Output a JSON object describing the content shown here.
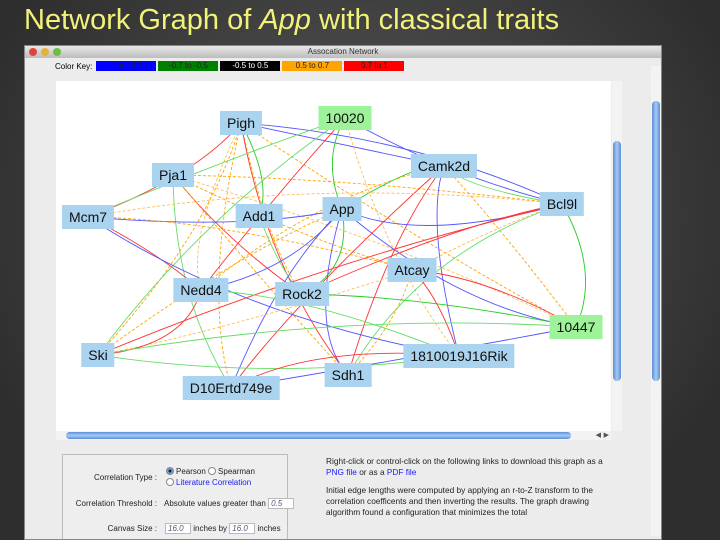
{
  "slide": {
    "title_prefix": "Network Graph of ",
    "title_italic": "App",
    "title_suffix": " with classical traits"
  },
  "window": {
    "title": "Assocation Network"
  },
  "color_key": {
    "label": "Color Key:",
    "items": [
      {
        "label": "-1 to -0.7",
        "color": "#0000ff"
      },
      {
        "label": "-0.7 to -0.5",
        "color": "#008000"
      },
      {
        "label": "-0.5 to 0.5",
        "color": "#000000"
      },
      {
        "label": "0.5 to 0.7",
        "color": "#ffa500"
      },
      {
        "label": "0.7 to 1",
        "color": "#ff0000"
      }
    ]
  },
  "nodes": [
    {
      "label": "Pigh",
      "highlight": false
    },
    {
      "label": "10020",
      "highlight": true
    },
    {
      "label": "Pja1",
      "highlight": false
    },
    {
      "label": "Camk2d",
      "highlight": false
    },
    {
      "label": "Mcm7",
      "highlight": false
    },
    {
      "label": "Add1",
      "highlight": false
    },
    {
      "label": "App",
      "highlight": false
    },
    {
      "label": "Bcl9l",
      "highlight": false
    },
    {
      "label": "Atcay",
      "highlight": false
    },
    {
      "label": "Nedd4",
      "highlight": false
    },
    {
      "label": "Rock2",
      "highlight": false
    },
    {
      "label": "10447",
      "highlight": true
    },
    {
      "label": "Ski",
      "highlight": false
    },
    {
      "label": "1810019J16Rik",
      "highlight": false
    },
    {
      "label": "Sdh1",
      "highlight": false
    },
    {
      "label": "D10Ertd749e",
      "highlight": false
    }
  ],
  "form": {
    "correlation_type_label": "Correlation Type :",
    "pearson": "Pearson",
    "spearman": "Spearman",
    "literature": "Literature Correlation",
    "selected": "Pearson",
    "threshold_label": "Correlation Threshold :",
    "threshold_text": "Absolute values greater than",
    "threshold_value": "0.5",
    "canvas_label": "Canvas Size :",
    "canvas_w": "16.0",
    "inches_by": "inches by",
    "canvas_h": "16.0",
    "inches": "inches"
  },
  "info": {
    "p1_a": "Right-click or control-click on the following links to download this graph as a ",
    "png_link": "PNG file",
    "p1_b": " or as a ",
    "pdf_link": "PDF file",
    "p2": "Initial edge lengths were computed by applying an r-to-Z transform to the correlation coefficents and then inverting the results. The graph drawing algorithm found a configuration that minimizes the total"
  }
}
